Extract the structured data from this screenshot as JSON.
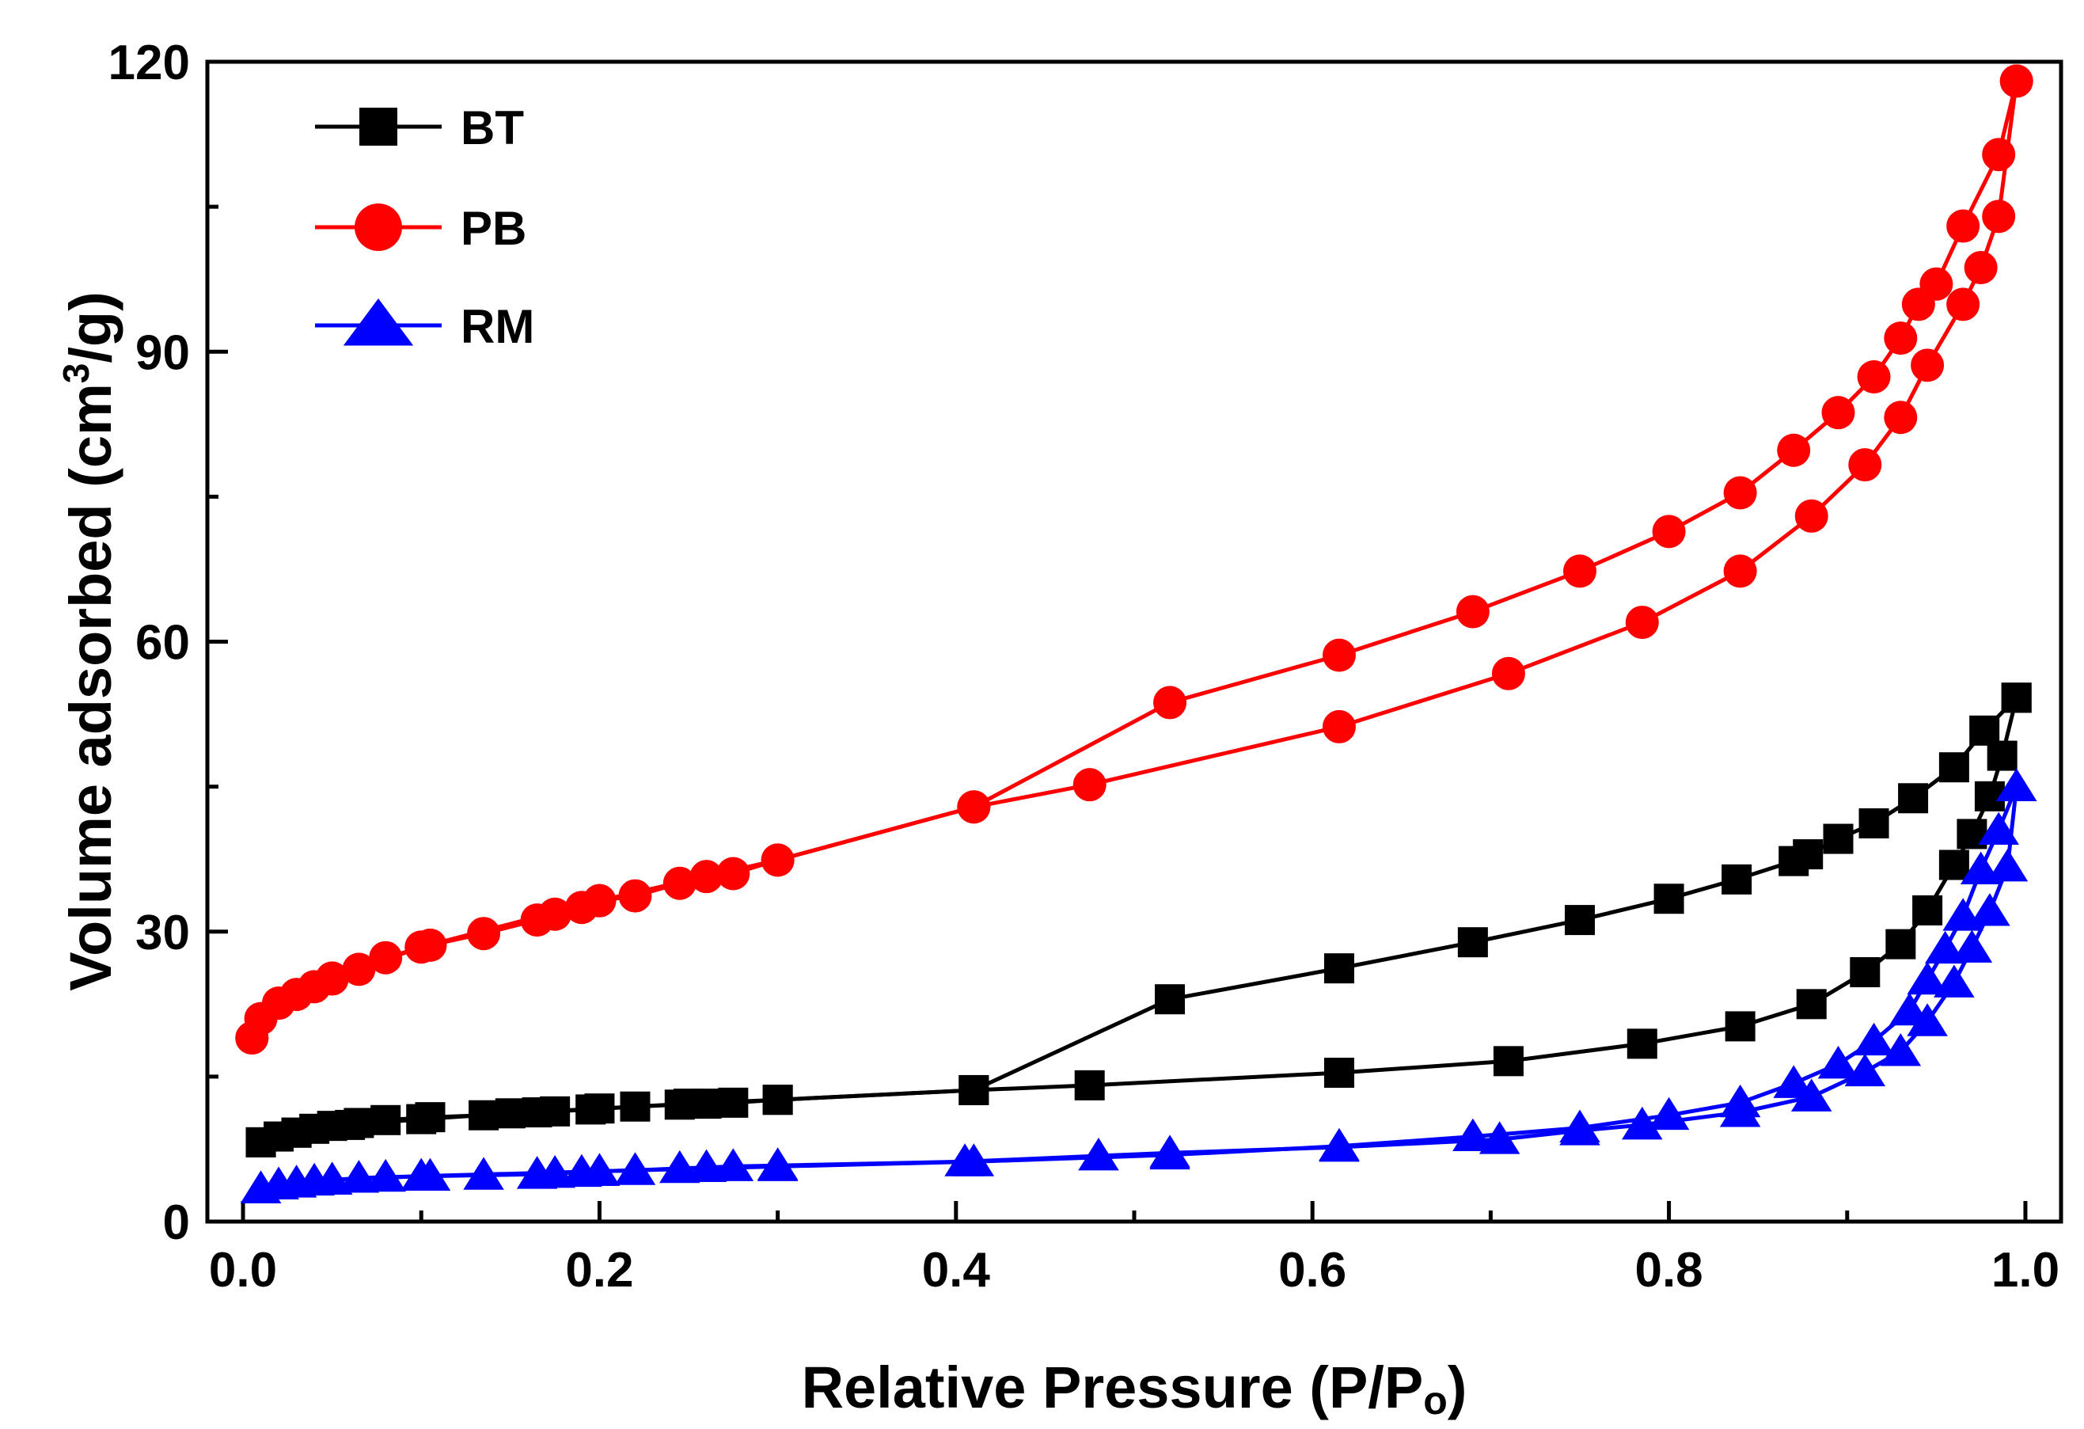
{
  "chart_data": {
    "type": "line",
    "xlabel_main": "Relative Pressure (P/P",
    "xlabel_sub": "o",
    "xlabel_end": ")",
    "ylabel_main": "Volume adsorbed (cm",
    "ylabel_sup": "3",
    "ylabel_end": "/g)",
    "xlim": [
      -0.02,
      1.02
    ],
    "ylim": [
      0,
      120
    ],
    "xticks": [
      0.0,
      0.2,
      0.4,
      0.6,
      0.8,
      1.0
    ],
    "xtick_labels": [
      "0.0",
      "0.2",
      "0.4",
      "0.6",
      "0.8",
      "1.0"
    ],
    "yticks": [
      0,
      30,
      60,
      90,
      120
    ],
    "ytick_labels": [
      "0",
      "30",
      "60",
      "90",
      "120"
    ],
    "legend_position": "top-left",
    "series": [
      {
        "name": "BT",
        "color": "#000000",
        "marker": "square",
        "adsorption": [
          [
            0.01,
            8.2
          ],
          [
            0.02,
            8.8
          ],
          [
            0.03,
            9.2
          ],
          [
            0.04,
            9.6
          ],
          [
            0.05,
            9.9
          ],
          [
            0.065,
            10.2
          ],
          [
            0.08,
            10.5
          ],
          [
            0.105,
            10.8
          ],
          [
            0.135,
            11.0
          ],
          [
            0.165,
            11.3
          ],
          [
            0.175,
            11.4
          ],
          [
            0.195,
            11.6
          ],
          [
            0.22,
            11.9
          ],
          [
            0.245,
            12.1
          ],
          [
            0.26,
            12.2
          ],
          [
            0.275,
            12.3
          ],
          [
            0.3,
            12.6
          ],
          [
            0.41,
            13.6
          ],
          [
            0.475,
            14.1
          ],
          [
            0.615,
            15.4
          ],
          [
            0.71,
            16.6
          ],
          [
            0.785,
            18.4
          ],
          [
            0.84,
            20.2
          ],
          [
            0.88,
            22.5
          ],
          [
            0.91,
            25.8
          ],
          [
            0.93,
            28.7
          ],
          [
            0.945,
            32.2
          ],
          [
            0.96,
            36.9
          ],
          [
            0.97,
            40.1
          ],
          [
            0.98,
            44.0
          ],
          [
            0.987,
            48.2
          ],
          [
            0.995,
            54.2
          ]
        ],
        "desorption": [
          [
            0.995,
            54.2
          ],
          [
            0.977,
            50.8
          ],
          [
            0.96,
            47.0
          ],
          [
            0.937,
            43.8
          ],
          [
            0.915,
            41.2
          ],
          [
            0.895,
            39.6
          ],
          [
            0.878,
            38.0
          ],
          [
            0.87,
            37.3
          ],
          [
            0.838,
            35.4
          ],
          [
            0.8,
            33.4
          ],
          [
            0.75,
            31.2
          ],
          [
            0.69,
            28.9
          ],
          [
            0.615,
            26.2
          ],
          [
            0.52,
            23.0
          ],
          [
            0.41,
            13.6
          ],
          [
            0.3,
            12.6
          ],
          [
            0.25,
            12.2
          ],
          [
            0.2,
            11.7
          ],
          [
            0.15,
            11.2
          ],
          [
            0.1,
            10.6
          ],
          [
            0.06,
            10.0
          ],
          [
            0.03,
            9.2
          ],
          [
            0.01,
            8.2
          ]
        ]
      },
      {
        "name": "PB",
        "color": "#ff0000",
        "marker": "circle",
        "adsorption": [
          [
            0.005,
            19.0
          ],
          [
            0.01,
            21.0
          ],
          [
            0.02,
            22.6
          ],
          [
            0.03,
            23.5
          ],
          [
            0.04,
            24.3
          ],
          [
            0.05,
            25.1
          ],
          [
            0.065,
            26.1
          ],
          [
            0.08,
            27.3
          ],
          [
            0.105,
            28.6
          ],
          [
            0.135,
            29.8
          ],
          [
            0.165,
            31.2
          ],
          [
            0.175,
            31.8
          ],
          [
            0.19,
            32.5
          ],
          [
            0.2,
            33.2
          ],
          [
            0.22,
            33.7
          ],
          [
            0.245,
            35.0
          ],
          [
            0.26,
            35.7
          ],
          [
            0.275,
            36.0
          ],
          [
            0.3,
            37.4
          ],
          [
            0.41,
            42.9
          ],
          [
            0.475,
            45.2
          ],
          [
            0.615,
            51.2
          ],
          [
            0.71,
            56.7
          ],
          [
            0.785,
            62.0
          ],
          [
            0.84,
            67.3
          ],
          [
            0.88,
            73.0
          ],
          [
            0.91,
            78.3
          ],
          [
            0.93,
            83.2
          ],
          [
            0.945,
            88.6
          ],
          [
            0.965,
            94.9
          ],
          [
            0.975,
            98.7
          ],
          [
            0.985,
            104.0
          ],
          [
            0.995,
            118.0
          ]
        ],
        "desorption": [
          [
            0.995,
            118.0
          ],
          [
            0.985,
            110.4
          ],
          [
            0.965,
            103.0
          ],
          [
            0.95,
            97.0
          ],
          [
            0.94,
            94.9
          ],
          [
            0.93,
            91.4
          ],
          [
            0.915,
            87.4
          ],
          [
            0.895,
            83.7
          ],
          [
            0.87,
            79.8
          ],
          [
            0.84,
            75.4
          ],
          [
            0.8,
            71.4
          ],
          [
            0.75,
            67.3
          ],
          [
            0.69,
            63.1
          ],
          [
            0.615,
            58.6
          ],
          [
            0.52,
            53.7
          ],
          [
            0.41,
            42.9
          ],
          [
            0.3,
            37.4
          ],
          [
            0.2,
            33.2
          ],
          [
            0.1,
            28.4
          ],
          [
            0.05,
            25.2
          ],
          [
            0.02,
            22.6
          ],
          [
            0.005,
            19.0
          ]
        ]
      },
      {
        "name": "RM",
        "color": "#0000ff",
        "marker": "triangle",
        "adsorption": [
          [
            0.01,
            3.4
          ],
          [
            0.02,
            3.8
          ],
          [
            0.03,
            4.0
          ],
          [
            0.04,
            4.2
          ],
          [
            0.05,
            4.3
          ],
          [
            0.065,
            4.5
          ],
          [
            0.08,
            4.6
          ],
          [
            0.105,
            4.7
          ],
          [
            0.135,
            4.8
          ],
          [
            0.165,
            4.9
          ],
          [
            0.175,
            5.0
          ],
          [
            0.19,
            5.1
          ],
          [
            0.2,
            5.2
          ],
          [
            0.22,
            5.3
          ],
          [
            0.245,
            5.5
          ],
          [
            0.26,
            5.6
          ],
          [
            0.275,
            5.7
          ],
          [
            0.3,
            5.8
          ],
          [
            0.405,
            6.2
          ],
          [
            0.48,
            6.8
          ],
          [
            0.52,
            7.1
          ],
          [
            0.615,
            7.7
          ],
          [
            0.705,
            8.5
          ],
          [
            0.75,
            9.4
          ],
          [
            0.785,
            10.0
          ],
          [
            0.84,
            11.3
          ],
          [
            0.88,
            12.9
          ],
          [
            0.91,
            15.5
          ],
          [
            0.93,
            17.6
          ],
          [
            0.945,
            20.7
          ],
          [
            0.96,
            24.7
          ],
          [
            0.97,
            28.3
          ],
          [
            0.98,
            32.1
          ],
          [
            0.99,
            36.7
          ],
          [
            0.995,
            45.0
          ]
        ],
        "desorption": [
          [
            0.995,
            45.0
          ],
          [
            0.985,
            40.5
          ],
          [
            0.975,
            36.4
          ],
          [
            0.965,
            31.6
          ],
          [
            0.955,
            28.2
          ],
          [
            0.945,
            25.0
          ],
          [
            0.935,
            21.8
          ],
          [
            0.915,
            18.7
          ],
          [
            0.895,
            16.3
          ],
          [
            0.87,
            14.3
          ],
          [
            0.84,
            12.3
          ],
          [
            0.8,
            11.0
          ],
          [
            0.75,
            9.7
          ],
          [
            0.69,
            8.8
          ],
          [
            0.615,
            7.8
          ],
          [
            0.52,
            6.9
          ],
          [
            0.41,
            6.2
          ],
          [
            0.3,
            5.7
          ],
          [
            0.2,
            5.2
          ],
          [
            0.1,
            4.7
          ],
          [
            0.05,
            4.3
          ],
          [
            0.02,
            3.8
          ],
          [
            0.01,
            3.4
          ]
        ]
      }
    ]
  }
}
